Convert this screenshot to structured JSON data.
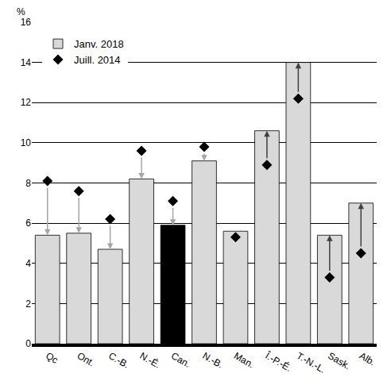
{
  "chart_data": {
    "type": "bar",
    "ylabel": "%",
    "categories": [
      "Qc",
      "Ont.",
      "C.-B.",
      "N.-É.",
      "Can.",
      "N.-B.",
      "Man.",
      "Î.-P.-É.",
      "T.-N.-L.",
      "Sask.",
      "Alb."
    ],
    "series": [
      {
        "name": "Janv. 2018",
        "type": "bar",
        "colors": [
          "#d9d9d9",
          "#d9d9d9",
          "#d9d9d9",
          "#d9d9d9",
          "#000000",
          "#d9d9d9",
          "#d9d9d9",
          "#d9d9d9",
          "#d9d9d9",
          "#d9d9d9",
          "#d9d9d9"
        ],
        "values": [
          5.4,
          5.5,
          4.7,
          8.2,
          5.9,
          9.1,
          5.6,
          10.6,
          14.0,
          5.4,
          7.0
        ]
      },
      {
        "name": "Juill. 2014",
        "type": "scatter",
        "marker": "diamond",
        "color": "#000000",
        "values": [
          8.1,
          7.6,
          6.2,
          9.6,
          7.1,
          9.8,
          5.3,
          8.9,
          12.2,
          3.3,
          4.5
        ]
      }
    ],
    "ylim": [
      0,
      16
    ],
    "yticks": [
      0,
      2,
      4,
      6,
      8,
      10,
      12,
      14,
      16
    ],
    "grid": true,
    "legend": "upper left"
  }
}
